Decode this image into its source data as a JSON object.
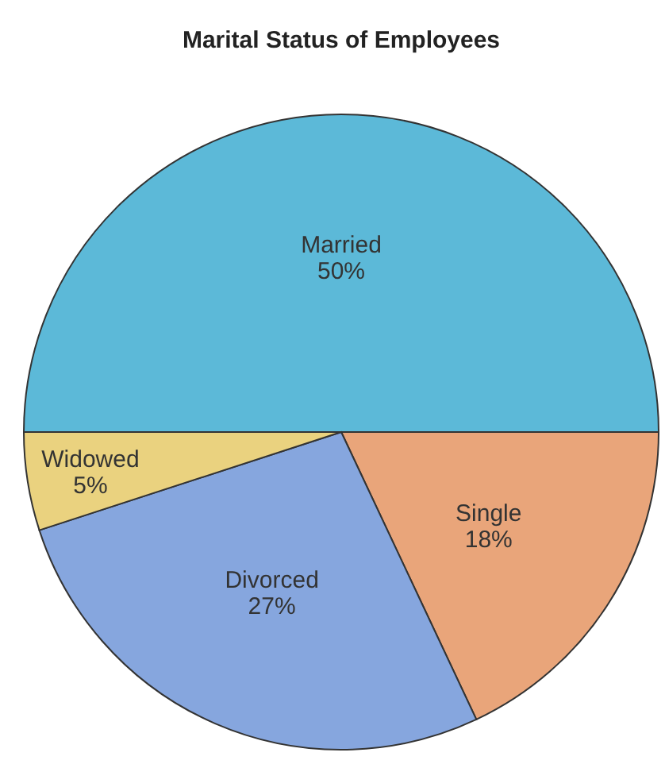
{
  "chart_data": {
    "type": "pie",
    "title": "Marital Status of Employees",
    "categories": [
      "Married",
      "Single",
      "Divorced",
      "Widowed"
    ],
    "values": [
      50,
      18,
      27,
      5
    ],
    "value_labels": [
      "50%",
      "18%",
      "27%",
      "5%"
    ],
    "colors": [
      "#5cb9d8",
      "#e9a57a",
      "#86a6de",
      "#ead27f"
    ],
    "legend": false
  }
}
